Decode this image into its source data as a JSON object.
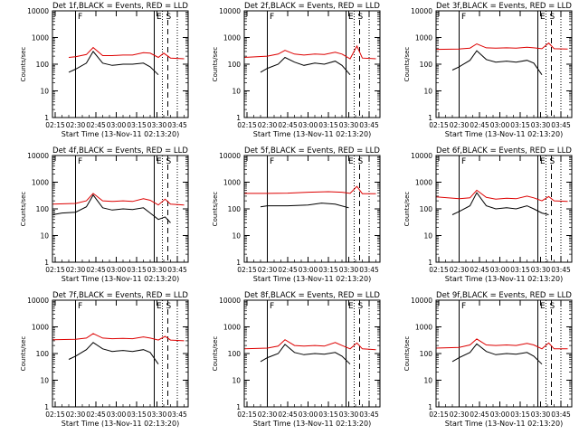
{
  "figure": {
    "xlabel": "Start Time (13-Nov-11 02:13:20)",
    "ylabel": "Counts/sec",
    "x_ticks": [
      "02:15",
      "02:30",
      "02:45",
      "03:00",
      "03:15",
      "03:30",
      "03:45"
    ],
    "y_ticks": [
      "1",
      "10",
      "100",
      "1000",
      "10000"
    ],
    "colors": {
      "events": "#000000",
      "lld": "#dd0000",
      "axes": "#000000"
    }
  },
  "chart_data": [
    {
      "type": "line",
      "title": "Det 1f,BLACK = Events, RED = LLD",
      "yscale": "log",
      "xlim": [
        "02:13",
        "03:53"
      ],
      "ylim": [
        1,
        10000
      ],
      "markers": {
        "solid": [
          "02:30",
          "03:28"
        ],
        "dotted": [
          "03:34",
          "03:45"
        ],
        "dashed": [
          "03:38"
        ],
        "labels": {
          "F": "02:31",
          "E": "03:29",
          "S": "03:36"
        }
      },
      "series": [
        {
          "name": "LLD",
          "x": [
            "02:25",
            "02:30",
            "02:38",
            "02:43",
            "02:50",
            "02:57",
            "03:05",
            "03:12",
            "03:20",
            "03:25",
            "03:31",
            "03:35",
            "03:40",
            "03:50"
          ],
          "y": [
            180,
            190,
            230,
            420,
            210,
            210,
            220,
            220,
            270,
            260,
            180,
            260,
            170,
            160
          ]
        },
        {
          "name": "Events",
          "x": [
            "02:25",
            "02:30",
            "02:38",
            "02:43",
            "02:50",
            "02:57",
            "03:05",
            "03:12",
            "03:20",
            "03:25",
            "03:31"
          ],
          "y": [
            50,
            65,
            110,
            300,
            110,
            90,
            100,
            100,
            110,
            80,
            40
          ]
        }
      ]
    },
    {
      "type": "line",
      "title": "Det 2f,BLACK = Events, RED = LLD",
      "yscale": "log",
      "xlim": [
        "02:13",
        "03:53"
      ],
      "ylim": [
        1,
        10000
      ],
      "markers": {
        "solid": [
          "02:30",
          "03:28"
        ],
        "dotted": [
          "03:34",
          "03:45"
        ],
        "dashed": [
          "03:38"
        ],
        "labels": {
          "F": "02:31",
          "E": "03:29",
          "S": "03:36"
        }
      },
      "series": [
        {
          "name": "LLD",
          "x": [
            "02:13",
            "02:30",
            "02:38",
            "02:43",
            "02:50",
            "02:57",
            "03:05",
            "03:12",
            "03:20",
            "03:25",
            "03:31",
            "03:36",
            "03:40",
            "03:50"
          ],
          "y": [
            180,
            200,
            240,
            330,
            240,
            220,
            240,
            230,
            280,
            240,
            160,
            480,
            170,
            160
          ]
        },
        {
          "name": "Events",
          "x": [
            "02:25",
            "02:30",
            "02:38",
            "02:43",
            "02:50",
            "02:57",
            "03:05",
            "03:12",
            "03:20",
            "03:25",
            "03:31"
          ],
          "y": [
            50,
            70,
            100,
            180,
            120,
            90,
            110,
            100,
            130,
            90,
            40
          ]
        }
      ]
    },
    {
      "type": "line",
      "title": "Det 3f,BLACK = Events, RED = LLD",
      "yscale": "log",
      "xlim": [
        "02:13",
        "03:53"
      ],
      "ylim": [
        1,
        10000
      ],
      "markers": {
        "solid": [
          "02:30",
          "03:28"
        ],
        "dotted": [
          "03:34",
          "03:45"
        ],
        "dashed": [
          "03:38"
        ],
        "labels": {
          "F": "02:31",
          "E": "03:29",
          "S": "03:36"
        }
      },
      "series": [
        {
          "name": "LLD",
          "x": [
            "02:13",
            "02:30",
            "02:38",
            "02:43",
            "02:50",
            "02:57",
            "03:05",
            "03:12",
            "03:20",
            "03:25",
            "03:31",
            "03:36",
            "03:40",
            "03:50"
          ],
          "y": [
            360,
            370,
            400,
            580,
            410,
            400,
            410,
            400,
            430,
            410,
            380,
            620,
            380,
            370
          ]
        },
        {
          "name": "Events",
          "x": [
            "02:25",
            "02:30",
            "02:38",
            "02:43",
            "02:50",
            "02:57",
            "03:05",
            "03:12",
            "03:20",
            "03:25",
            "03:31"
          ],
          "y": [
            60,
            80,
            140,
            320,
            150,
            120,
            130,
            120,
            140,
            110,
            40
          ]
        }
      ]
    },
    {
      "type": "line",
      "title": "Det 4f,BLACK = Events, RED = LLD",
      "yscale": "log",
      "xlim": [
        "02:13",
        "03:53"
      ],
      "ylim": [
        1,
        10000
      ],
      "markers": {
        "solid": [
          "02:30",
          "03:28"
        ],
        "dotted": [
          "03:34",
          "03:45"
        ],
        "dashed": [
          "03:38"
        ],
        "labels": {
          "F": "02:31",
          "E": "03:29",
          "S": "03:36"
        }
      },
      "series": [
        {
          "name": "LLD",
          "x": [
            "02:13",
            "02:30",
            "02:38",
            "02:43",
            "02:50",
            "02:57",
            "03:05",
            "03:12",
            "03:20",
            "03:25",
            "03:31",
            "03:36",
            "03:40",
            "03:50"
          ],
          "y": [
            150,
            160,
            200,
            380,
            200,
            190,
            200,
            190,
            240,
            210,
            140,
            230,
            150,
            140
          ]
        },
        {
          "name": "Events",
          "x": [
            "02:13",
            "02:20",
            "02:30",
            "02:38",
            "02:43",
            "02:50",
            "02:57",
            "03:05",
            "03:12",
            "03:20",
            "03:25",
            "03:31",
            "03:36",
            "03:40"
          ],
          "y": [
            60,
            70,
            75,
            120,
            330,
            110,
            90,
            100,
            95,
            110,
            70,
            40,
            50,
            30
          ]
        }
      ]
    },
    {
      "type": "line",
      "title": "Det 5f,BLACK = Events, RED = LLD",
      "yscale": "log",
      "xlim": [
        "02:13",
        "03:53"
      ],
      "ylim": [
        1,
        10000
      ],
      "markers": {
        "solid": [
          "02:30",
          "03:28"
        ],
        "dotted": [
          "03:34",
          "03:45"
        ],
        "dashed": [
          "03:38"
        ],
        "labels": {
          "F": "02:31",
          "E": "03:29",
          "S": "03:36"
        }
      },
      "series": [
        {
          "name": "LLD",
          "x": [
            "02:13",
            "02:30",
            "02:45",
            "03:00",
            "03:15",
            "03:25",
            "03:31",
            "03:36",
            "03:40",
            "03:50"
          ],
          "y": [
            380,
            380,
            390,
            420,
            440,
            420,
            380,
            700,
            370,
            370
          ]
        },
        {
          "name": "Events",
          "x": [
            "02:25",
            "02:30",
            "02:45",
            "03:00",
            "03:10",
            "03:20",
            "03:30"
          ],
          "y": [
            120,
            130,
            130,
            140,
            165,
            150,
            110
          ]
        }
      ]
    },
    {
      "type": "line",
      "title": "Det 6f,BLACK = Events, RED = LLD",
      "yscale": "log",
      "xlim": [
        "02:13",
        "03:53"
      ],
      "ylim": [
        1,
        10000
      ],
      "markers": {
        "solid": [
          "02:30",
          "03:28"
        ],
        "dotted": [
          "03:34",
          "03:45"
        ],
        "dashed": [
          "03:38"
        ],
        "labels": {
          "F": "02:31",
          "E": "03:29",
          "S": "03:36"
        }
      },
      "series": [
        {
          "name": "LLD",
          "x": [
            "02:13",
            "02:30",
            "02:38",
            "02:43",
            "02:50",
            "02:57",
            "03:05",
            "03:12",
            "03:20",
            "03:25",
            "03:31",
            "03:36",
            "03:40",
            "03:50"
          ],
          "y": [
            280,
            240,
            260,
            500,
            270,
            230,
            250,
            240,
            300,
            260,
            200,
            290,
            200,
            190
          ]
        },
        {
          "name": "Events",
          "x": [
            "02:25",
            "02:30",
            "02:38",
            "02:43",
            "02:50",
            "02:57",
            "03:05",
            "03:12",
            "03:20",
            "03:25",
            "03:31",
            "03:36"
          ],
          "y": [
            60,
            80,
            130,
            400,
            130,
            100,
            110,
            100,
            130,
            100,
            70,
            60
          ]
        }
      ]
    },
    {
      "type": "line",
      "title": "Det 7f,BLACK = Events, RED = LLD",
      "yscale": "log",
      "xlim": [
        "02:13",
        "03:53"
      ],
      "ylim": [
        1,
        10000
      ],
      "markers": {
        "solid": [
          "02:30",
          "03:28"
        ],
        "dotted": [
          "03:34",
          "03:45"
        ],
        "dashed": [
          "03:38"
        ],
        "labels": {
          "F": "02:31",
          "E": "03:29",
          "S": "03:36"
        }
      },
      "series": [
        {
          "name": "LLD",
          "x": [
            "02:13",
            "02:30",
            "02:38",
            "02:43",
            "02:50",
            "02:57",
            "03:05",
            "03:12",
            "03:20",
            "03:25",
            "03:31",
            "03:36",
            "03:40",
            "03:50"
          ],
          "y": [
            330,
            340,
            380,
            560,
            380,
            360,
            370,
            360,
            420,
            380,
            320,
            440,
            320,
            300
          ]
        },
        {
          "name": "Events",
          "x": [
            "02:25",
            "02:30",
            "02:38",
            "02:43",
            "02:50",
            "02:57",
            "03:05",
            "03:12",
            "03:20",
            "03:25",
            "03:31"
          ],
          "y": [
            60,
            80,
            140,
            260,
            150,
            120,
            130,
            120,
            140,
            110,
            40
          ]
        }
      ]
    },
    {
      "type": "line",
      "title": "Det 8f,BLACK = Events, RED = LLD",
      "yscale": "log",
      "xlim": [
        "02:13",
        "03:53"
      ],
      "ylim": [
        1,
        10000
      ],
      "markers": {
        "solid": [
          "02:30",
          "03:28"
        ],
        "dotted": [
          "03:34",
          "03:45"
        ],
        "dashed": [
          "03:38"
        ],
        "labels": {
          "F": "02:31",
          "E": "03:29",
          "S": "03:36"
        }
      },
      "series": [
        {
          "name": "LLD",
          "x": [
            "02:13",
            "02:30",
            "02:38",
            "02:43",
            "02:50",
            "02:57",
            "03:05",
            "03:12",
            "03:20",
            "03:25",
            "03:31",
            "03:36",
            "03:40",
            "03:50"
          ],
          "y": [
            150,
            160,
            190,
            330,
            200,
            190,
            200,
            190,
            260,
            200,
            150,
            250,
            150,
            140
          ]
        },
        {
          "name": "Events",
          "x": [
            "02:25",
            "02:30",
            "02:38",
            "02:43",
            "02:50",
            "02:57",
            "03:05",
            "03:12",
            "03:20",
            "03:25",
            "03:31"
          ],
          "y": [
            50,
            70,
            100,
            220,
            110,
            90,
            100,
            95,
            110,
            80,
            40
          ]
        }
      ]
    },
    {
      "type": "line",
      "title": "Det 9f,BLACK = Events, RED = LLD",
      "yscale": "log",
      "xlim": [
        "02:13",
        "03:53"
      ],
      "ylim": [
        1,
        10000
      ],
      "markers": {
        "solid": [
          "02:30",
          "03:28"
        ],
        "dotted": [
          "03:34",
          "03:45"
        ],
        "dashed": [
          "03:38"
        ],
        "labels": {
          "F": "02:31",
          "E": "03:29",
          "S": "03:36"
        }
      },
      "series": [
        {
          "name": "LLD",
          "x": [
            "02:13",
            "02:30",
            "02:38",
            "02:43",
            "02:50",
            "02:57",
            "03:05",
            "03:12",
            "03:20",
            "03:25",
            "03:31",
            "03:36",
            "03:40",
            "03:50"
          ],
          "y": [
            160,
            170,
            210,
            350,
            210,
            200,
            210,
            200,
            240,
            210,
            150,
            250,
            150,
            150
          ]
        },
        {
          "name": "Events",
          "x": [
            "02:25",
            "02:30",
            "02:38",
            "02:43",
            "02:50",
            "02:57",
            "03:05",
            "03:12",
            "03:20",
            "03:25",
            "03:31"
          ],
          "y": [
            50,
            70,
            110,
            230,
            120,
            90,
            100,
            95,
            110,
            80,
            40
          ]
        }
      ]
    }
  ]
}
